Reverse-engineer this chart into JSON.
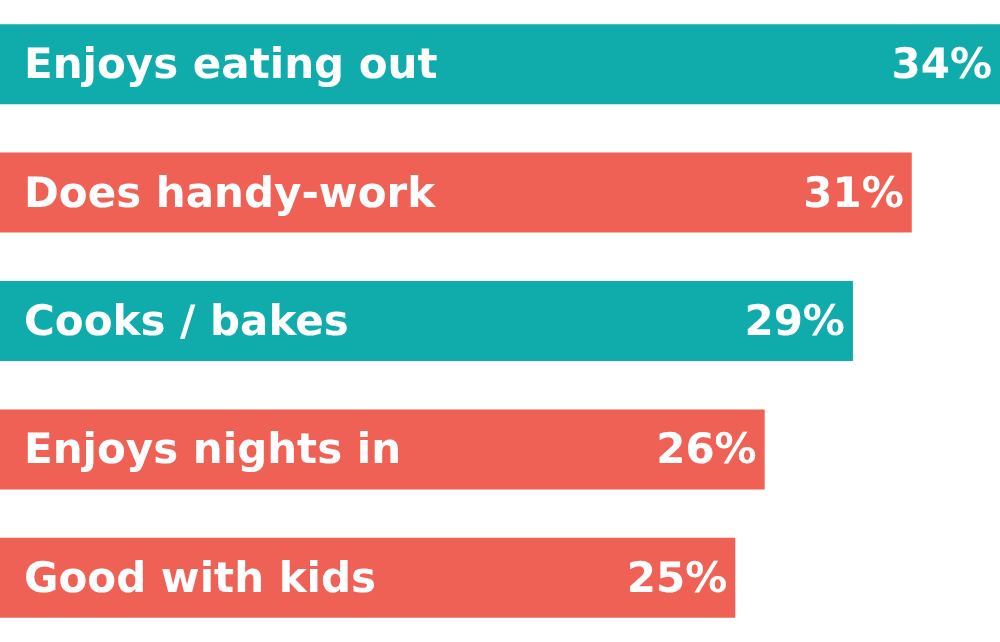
{
  "chart_data": {
    "type": "bar",
    "orientation": "horizontal",
    "categories": [
      "Enjoys eating out",
      "Does handy-work",
      "Cooks / bakes",
      "Enjoys nights in",
      "Good with kids"
    ],
    "values": [
      34,
      31,
      29,
      26,
      25
    ],
    "colors": [
      "#10acac",
      "#ee6154",
      "#10acac",
      "#ee6154",
      "#ee6154"
    ],
    "value_labels": [
      "34%",
      "31%",
      "29%",
      "26%",
      "25%"
    ],
    "xlim": [
      0,
      34
    ]
  }
}
